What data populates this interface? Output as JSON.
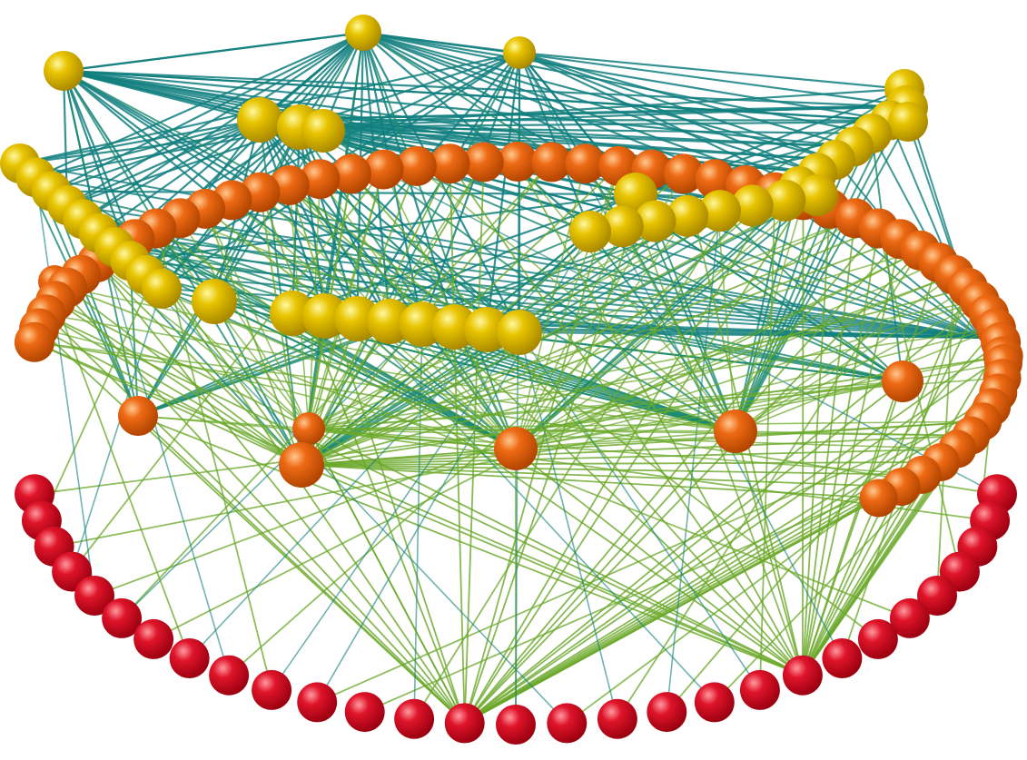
{
  "figure": {
    "kind": "3d-network-visualization",
    "background_color": "#ffffff"
  },
  "layers": [
    {
      "id": "top",
      "color": "#e8c400",
      "highlight": "#fff8a0",
      "shade": "#a88800",
      "node_count": 45
    },
    {
      "id": "middle",
      "color": "#ee6a14",
      "highlight": "#ffc890",
      "shade": "#b04400",
      "node_count": 62
    },
    {
      "id": "bottom",
      "color": "#e0142a",
      "highlight": "#ff9aa0",
      "shade": "#9a0010",
      "node_count": 29
    }
  ],
  "edge_colors": {
    "top_to_top": "#127f7f",
    "top_to_middle": "#1a8a6e",
    "middle_to_bottom": "#6aa828",
    "top_to_bottom": "#13807a"
  }
}
